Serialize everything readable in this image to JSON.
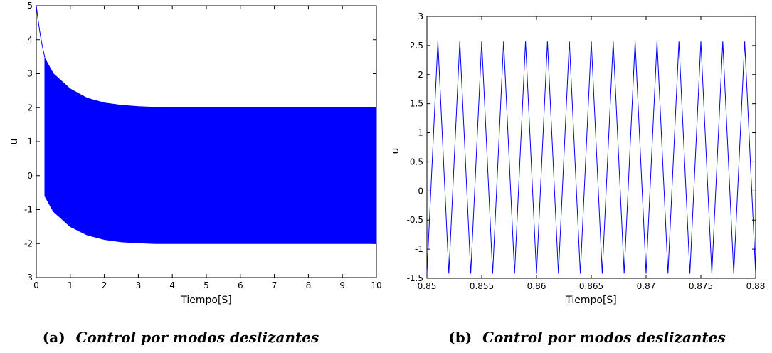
{
  "chart_data": [
    {
      "type": "area",
      "xlabel": "Tiempo[S]",
      "ylabel": "u",
      "xlim": [
        0,
        10
      ],
      "ylim": [
        -3,
        5
      ],
      "xticks": [
        "0",
        "1",
        "2",
        "3",
        "4",
        "5",
        "6",
        "7",
        "8",
        "9",
        "10"
      ],
      "yticks": [
        "-3",
        "-2",
        "-1",
        "0",
        "1",
        "2",
        "3",
        "4",
        "5"
      ],
      "color": "#0000ff",
      "initial_decay": {
        "x": [
          0,
          0.05,
          0.1,
          0.15,
          0.2,
          0.25
        ],
        "y": [
          5,
          4.6,
          4.25,
          3.95,
          3.7,
          3.48
        ]
      },
      "series": [
        {
          "x": [
            0.25,
            0.5,
            1,
            1.5,
            2,
            2.5,
            3,
            3.5,
            4,
            5,
            6,
            7,
            8,
            9,
            10
          ],
          "y": [
            3.45,
            3.0,
            2.55,
            2.28,
            2.14,
            2.07,
            2.03,
            2.01,
            2.0,
            2.0,
            2.0,
            2.0,
            2.0,
            2.0,
            2.0
          ]
        },
        {
          "x": [
            0.25,
            0.5,
            1,
            1.5,
            2,
            2.5,
            3,
            3.5,
            4,
            5,
            6,
            7,
            8,
            9,
            10
          ],
          "y": [
            -0.6,
            -1.05,
            -1.5,
            -1.75,
            -1.88,
            -1.95,
            -1.98,
            -2.0,
            -2.0,
            -2.0,
            -2.0,
            -2.0,
            -2.0,
            -2.0,
            -2.0
          ]
        }
      ],
      "caption": {
        "label": "(a)",
        "text": "Control por modos deslizantes"
      }
    },
    {
      "type": "line",
      "xlabel": "Tiempo[S]",
      "ylabel": "u",
      "xlim": [
        0.85,
        0.88
      ],
      "ylim": [
        -1.5,
        3
      ],
      "xticks": [
        "0.85",
        "0.855",
        "0.86",
        "0.865",
        "0.87",
        "0.875",
        "0.88"
      ],
      "yticks": [
        "-1.5",
        "-1",
        "-0.5",
        "0",
        "0.5",
        "1",
        "1.5",
        "2",
        "2.5",
        "3"
      ],
      "color": "#0000ff",
      "series": [
        {
          "x": [
            0.85,
            0.851,
            0.852,
            0.853,
            0.854,
            0.855,
            0.856,
            0.857,
            0.858,
            0.859,
            0.86,
            0.861,
            0.862,
            0.863,
            0.864,
            0.865,
            0.866,
            0.867,
            0.868,
            0.869,
            0.87,
            0.871,
            0.872,
            0.873,
            0.874,
            0.875,
            0.876,
            0.877,
            0.878,
            0.879,
            0.88
          ],
          "y": [
            -1.42,
            2.57,
            -1.42,
            2.57,
            -1.42,
            2.57,
            -1.42,
            2.57,
            -1.42,
            2.57,
            -1.42,
            2.57,
            -1.42,
            2.57,
            -1.42,
            2.57,
            -1.42,
            2.57,
            -1.42,
            2.57,
            -1.42,
            2.57,
            -1.42,
            2.57,
            -1.42,
            2.57,
            -1.42,
            2.57,
            -1.42,
            2.57,
            -1.42
          ]
        }
      ],
      "caption": {
        "label": "(b)",
        "text": "Control por modos deslizantes"
      }
    }
  ]
}
